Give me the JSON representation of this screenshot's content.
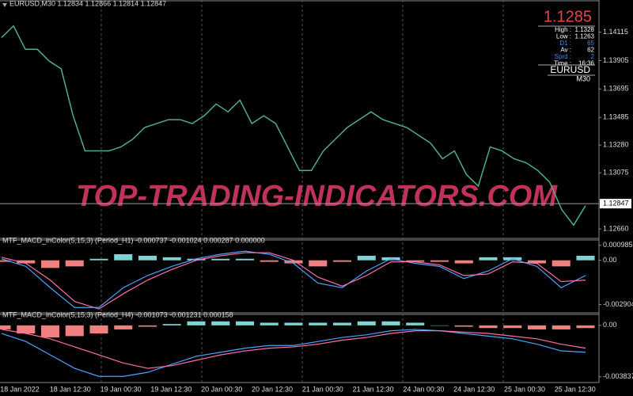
{
  "info_panel": {
    "price": "1.1285",
    "rows": [
      {
        "label": "High :",
        "value": "1.1328",
        "color": "#ffffff"
      },
      {
        "label": "Low :",
        "value": "1.1263",
        "color": "#ffffff"
      },
      {
        "label": "D1 :",
        "value": "65",
        "color": "#3d8bff"
      },
      {
        "label": "Av :",
        "value": "62",
        "color": "#ffffff"
      },
      {
        "label": "Sprd :",
        "value": "2",
        "color": "#3d8bff"
      },
      {
        "label": "Time :",
        "value": "16:36",
        "color": "#ffffff"
      }
    ],
    "symbol": "EURUSD",
    "timeframe": "M30"
  },
  "watermark": "TOP-TRADING-INDICATORS.COM",
  "time_labels": [
    "18 Jan 2022",
    "18 Jan 12:30",
    "19 Jan 00:30",
    "19 Jan 12:30",
    "20 Jan 00:30",
    "20 Jan 12:30",
    "21 Jan 00:30",
    "21 Jan 12:30",
    "24 Jan 00:30",
    "24 Jan 12:30",
    "25 Jan 00:30",
    "25 Jan 12:30"
  ],
  "chart_data": [
    {
      "type": "line",
      "title": "EURUSD,M30  1.12834 1.12866 1.12814 1.12847",
      "series": [
        {
          "name": "EURUSD",
          "color": "#4caf8a",
          "style": "line",
          "values": [
            1.14075,
            1.14161,
            1.13988,
            1.13988,
            1.13901,
            1.13844,
            1.13497,
            1.13237,
            1.13237,
            1.13237,
            1.13266,
            1.13323,
            1.1341,
            1.13439,
            1.13468,
            1.13468,
            1.13439,
            1.13497,
            1.13584,
            1.13526,
            1.13612,
            1.13439,
            1.13497,
            1.13439,
            1.13266,
            1.13092,
            1.13092,
            1.13237,
            1.13323,
            1.1341,
            1.13468,
            1.13526,
            1.13468,
            1.13439,
            1.1341,
            1.13352,
            1.13294,
            1.13179,
            1.13237,
            1.13063,
            1.12977,
            1.13266,
            1.13237,
            1.13179,
            1.1315,
            1.13092,
            1.13005,
            1.12803,
            1.12688,
            1.12832
          ]
        }
      ],
      "current_price": 1.12847,
      "ylim": [
        1.12596,
        1.14306
      ],
      "yticks": [
        1.14115,
        1.13905,
        1.13695,
        1.13485,
        {
          "value": 1.1328,
          "label": "1.13280"
        },
        1.13075,
        {
          "value": 1.1266,
          "label": "1.12660"
        }
      ]
    },
    {
      "type": "macd",
      "title": "MTF_MACD_inColor(5,15,3) (Period_H1) -0.000737 -0.001024 0.000287 0.000000",
      "series": [
        {
          "name": "histogram",
          "style": "histogram",
          "color": "#7fd3d3",
          "negative_color": "#f08080",
          "values": [
            -0.0001,
            -0.0002,
            -0.0005,
            -0.0004,
            0.0001,
            0.0004,
            0.0003,
            0.0002,
            0.0001,
            0.0001,
            0.0001,
            -0.0001,
            -0.0002,
            -0.0004,
            -0.0001,
            0.0003,
            0.0002,
            -0.0001,
            -0.0001,
            -0.0002,
            0.0002,
            0.0002,
            -0.0002,
            -0.0004,
            0.0003
          ]
        },
        {
          "name": "macd",
          "style": "line",
          "color": "#4aa3ff",
          "values": [
            0.0001,
            -0.0004,
            -0.0018,
            -0.0031,
            -0.0031,
            -0.0018,
            -0.001,
            -0.0004,
            0.0001,
            0.0004,
            0.0006,
            0.0004,
            -0.0002,
            -0.0015,
            -0.0018,
            -0.0007,
            0.0001,
            -0.0002,
            -0.0004,
            -0.0012,
            -0.0007,
            0.0001,
            -0.0004,
            -0.0018,
            -0.001
          ]
        },
        {
          "name": "signal",
          "style": "line",
          "color": "#ff6fa5",
          "values": [
            0.0002,
            -0.0002,
            -0.0013,
            -0.0027,
            -0.0032,
            -0.0022,
            -0.0013,
            -0.0006,
            0,
            0.0003,
            0.0005,
            0.0005,
            0,
            -0.0011,
            -0.0017,
            -0.001,
            -0.0001,
            -0.0001,
            -0.0003,
            -0.001,
            -0.0009,
            -0.0001,
            -0.0002,
            -0.0014,
            -0.0013
          ]
        }
      ],
      "ylim": [
        -0.0034,
        0.00118
      ],
      "yticks": [
        0.000985,
        {
          "value": 0,
          "label": "0.00"
        },
        -0.002904
      ]
    },
    {
      "type": "macd",
      "title": "MTF_MACD_inColor(5,15,3) (Period_H4) -0.001073 -0.001231 0.000158",
      "series": [
        {
          "name": "histogram",
          "style": "histogram",
          "color": "#7fd3d3",
          "negative_color": "#f08080",
          "values": [
            -0.0003,
            -0.0006,
            -0.0009,
            -0.0008,
            -0.0006,
            -0.0003,
            -0.0001,
            0.0001,
            0.0003,
            0.0003,
            0.0003,
            0.0002,
            0.0002,
            0.0002,
            0.0002,
            0.0003,
            0.0003,
            0.0002,
            0,
            -0.0001,
            -0.0002,
            -0.0002,
            -0.0003,
            -0.0003,
            -0.0002
          ]
        },
        {
          "name": "macd",
          "style": "line",
          "color": "#4aa3ff",
          "values": [
            -0.0006,
            -0.0012,
            -0.0022,
            -0.0032,
            -0.0038,
            -0.0038,
            -0.0035,
            -0.0029,
            -0.0023,
            -0.002,
            -0.0017,
            -0.0015,
            -0.0015,
            -0.0012,
            -0.0009,
            -0.0007,
            -0.0004,
            -0.0003,
            -0.0004,
            -0.0006,
            -0.0008,
            -0.001,
            -0.0014,
            -0.0019,
            -0.002
          ]
        },
        {
          "name": "signal",
          "style": "line",
          "color": "#ff6fa5",
          "values": [
            -0.0003,
            -0.0006,
            -0.001,
            -0.0016,
            -0.0022,
            -0.0028,
            -0.0032,
            -0.003,
            -0.0026,
            -0.0022,
            -0.0019,
            -0.0017,
            -0.0016,
            -0.0014,
            -0.0011,
            -0.0009,
            -0.0006,
            -0.0004,
            -0.0004,
            -0.0005,
            -0.0006,
            -0.0008,
            -0.001,
            -0.0014,
            -0.0017
          ]
        }
      ],
      "ylim": [
        -0.0042,
        0.00064
      ],
      "yticks": [
        {
          "value": 0,
          "label": "0.00"
        },
        -0.003837
      ]
    }
  ]
}
